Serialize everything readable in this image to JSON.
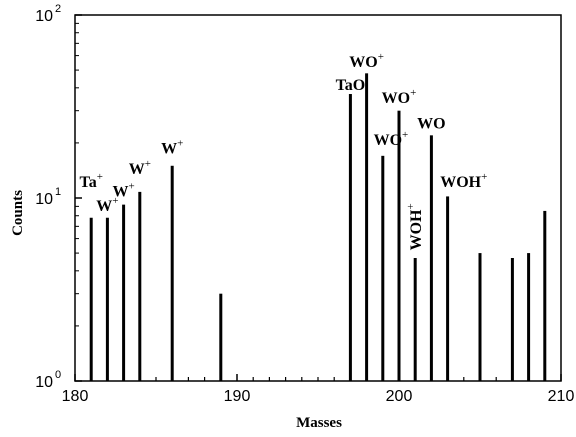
{
  "chart_data": {
    "type": "bar",
    "xlabel": "Masses",
    "ylabel": "Counts",
    "xlim": [
      180,
      210
    ],
    "ylim": [
      1,
      100
    ],
    "yscale": "log",
    "x_ticks": [
      {
        "value": 180,
        "label": "180"
      },
      {
        "value": 190,
        "label": "190"
      },
      {
        "value": 200,
        "label": "200"
      },
      {
        "value": 210,
        "label": "210"
      }
    ],
    "y_ticks": [
      {
        "value": 1,
        "base": "10",
        "exp": "0"
      },
      {
        "value": 10,
        "base": "10",
        "exp": "1"
      },
      {
        "value": 100,
        "base": "10",
        "exp": "2"
      }
    ],
    "x": [
      181,
      182,
      183,
      184,
      186,
      189,
      197,
      198,
      199,
      200,
      201,
      202,
      203,
      205,
      207,
      208,
      209
    ],
    "values": [
      7.8,
      7.8,
      9.2,
      10.8,
      15.0,
      3.0,
      37.0,
      48.0,
      17.0,
      30.0,
      4.7,
      22.0,
      10.2,
      5.0,
      4.7,
      5.0,
      8.5
    ],
    "annotations": [
      {
        "base": "Ta",
        "sup": "+",
        "x": 181,
        "y": 11.5,
        "rotate": false
      },
      {
        "base": "W",
        "sup": "+",
        "x": 182,
        "y": 8.5,
        "rotate": false
      },
      {
        "base": "W",
        "sup": "+",
        "x": 183,
        "y": 10.2,
        "rotate": false
      },
      {
        "base": "W",
        "sup": "+",
        "x": 184,
        "y": 13.5,
        "rotate": false
      },
      {
        "base": "W",
        "sup": "+",
        "x": 186,
        "y": 17.5,
        "rotate": false
      },
      {
        "base": "TaO",
        "sup": "",
        "x": 197,
        "y": 39,
        "rotate": false
      },
      {
        "base": "WO",
        "sup": "+",
        "x": 198,
        "y": 52,
        "rotate": false
      },
      {
        "base": "WO",
        "sup": "+",
        "x": 200,
        "y": 33,
        "rotate": false
      },
      {
        "base": "WO",
        "sup": "+",
        "x": 199.5,
        "y": 19.5,
        "rotate": false
      },
      {
        "base": "WO",
        "sup": "",
        "x": 202,
        "y": 24,
        "rotate": false
      },
      {
        "base": "WOH",
        "sup": "+",
        "x": 201,
        "y": 11,
        "rotate": true
      },
      {
        "base": "WOH",
        "sup": "+",
        "x": 204,
        "y": 11.5,
        "rotate": false
      }
    ]
  }
}
